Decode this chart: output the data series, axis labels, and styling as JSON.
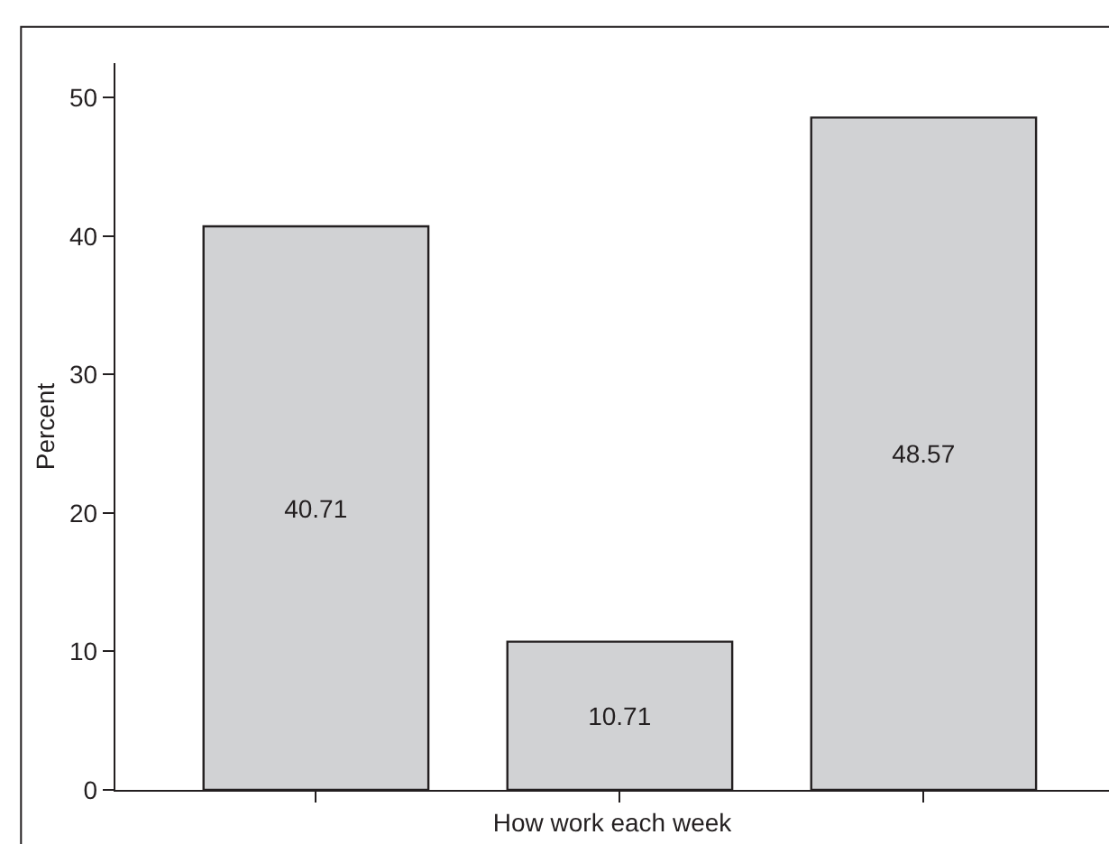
{
  "chart_data": {
    "type": "bar",
    "xlabel": "How work each week",
    "ylabel": "Percent",
    "categories": [
      null,
      null,
      null
    ],
    "values": [
      40.71,
      10.71,
      48.57
    ],
    "color": "#d1d2d4",
    "data_labels": true,
    "ylim": [
      0,
      52.5
    ],
    "yticks": [
      0,
      10,
      20,
      30,
      40,
      50
    ],
    "legend": false
  }
}
